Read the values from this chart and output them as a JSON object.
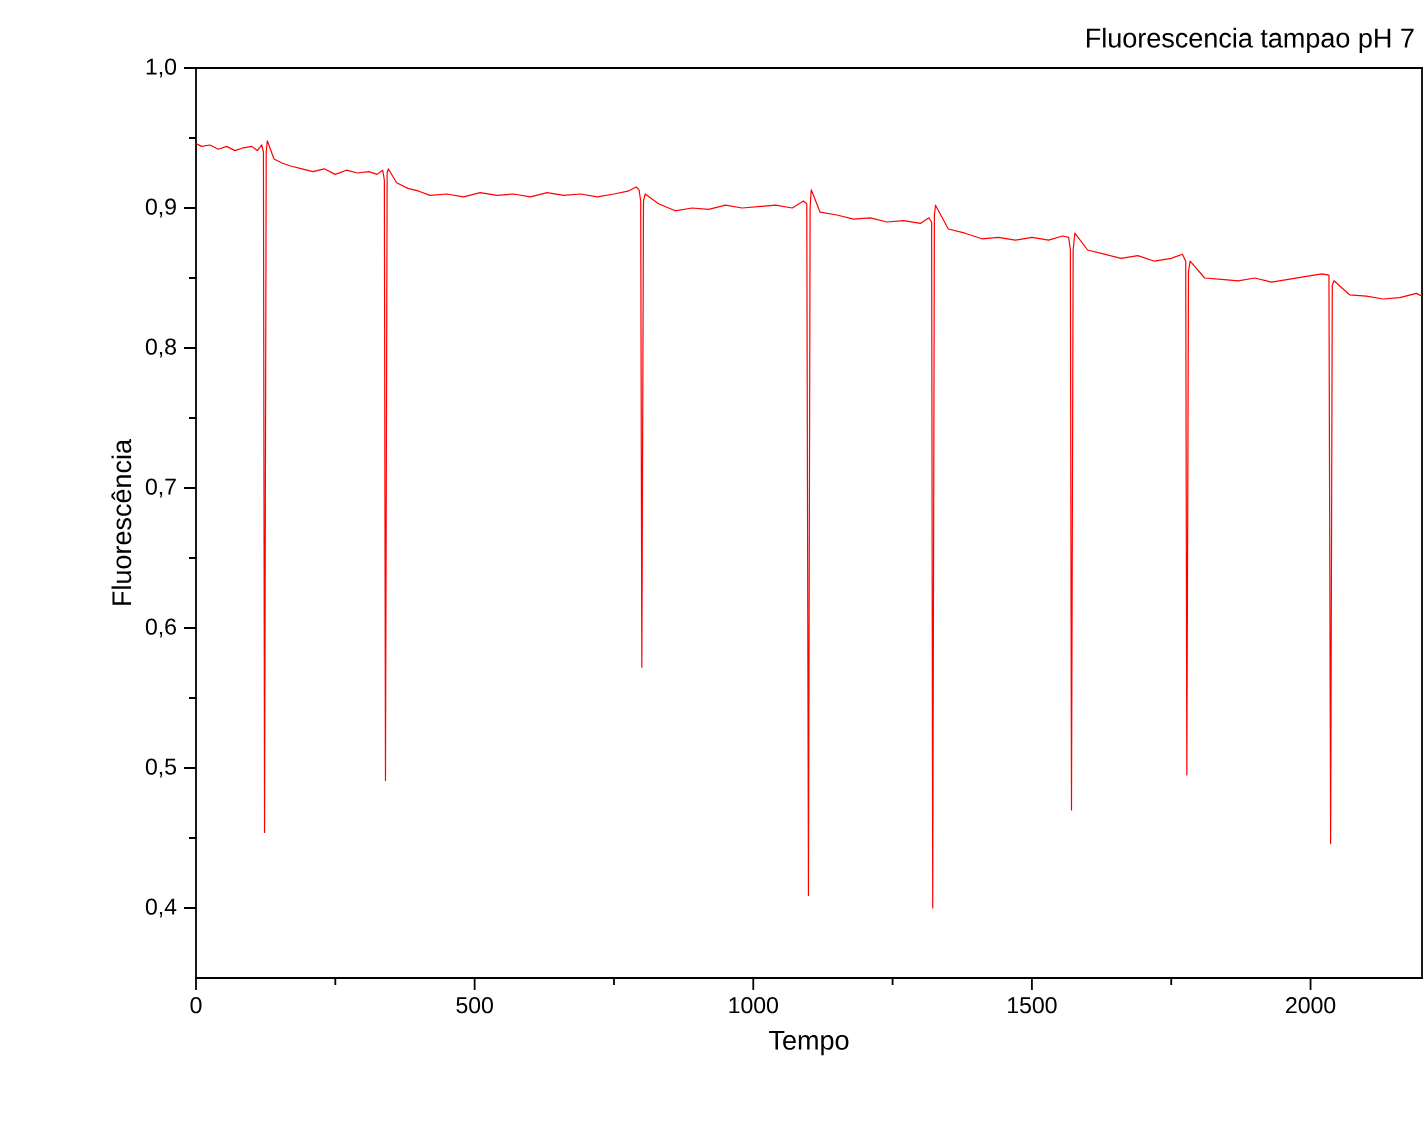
{
  "chart_data": {
    "type": "line",
    "title": "Fluorescencia tampao pH 7",
    "xlabel": "Tempo",
    "ylabel": "Fluorescência",
    "xlim": [
      0,
      2200
    ],
    "ylim": [
      0.35,
      1.0
    ],
    "xticks": [
      0,
      500,
      1000,
      1500,
      2000
    ],
    "yticks": [
      {
        "value": 0.4,
        "label": "0,4"
      },
      {
        "value": 0.5,
        "label": "0,5"
      },
      {
        "value": 0.6,
        "label": "0,6"
      },
      {
        "value": 0.7,
        "label": "0,7"
      },
      {
        "value": 0.8,
        "label": "0,8"
      },
      {
        "value": 0.9,
        "label": "0,9"
      },
      {
        "value": 1.0,
        "label": "1,0"
      }
    ],
    "series": [
      {
        "color": "#ff0000",
        "x": [
          0,
          10,
          25,
          40,
          55,
          70,
          85,
          100,
          110,
          118,
          121,
          123,
          126,
          128,
          140,
          155,
          170,
          190,
          210,
          230,
          250,
          270,
          290,
          310,
          325,
          335,
          338,
          340,
          343,
          345,
          360,
          380,
          400,
          420,
          450,
          480,
          510,
          540,
          570,
          600,
          630,
          660,
          690,
          720,
          750,
          775,
          790,
          795,
          798,
          800,
          803,
          806,
          830,
          860,
          890,
          920,
          950,
          980,
          1010,
          1040,
          1070,
          1090,
          1096,
          1099,
          1102,
          1104,
          1120,
          1150,
          1180,
          1210,
          1240,
          1270,
          1300,
          1315,
          1320,
          1322,
          1325,
          1327,
          1350,
          1380,
          1410,
          1440,
          1470,
          1500,
          1530,
          1555,
          1566,
          1569,
          1571,
          1574,
          1577,
          1600,
          1630,
          1660,
          1690,
          1720,
          1750,
          1770,
          1776,
          1778,
          1781,
          1784,
          1810,
          1840,
          1870,
          1900,
          1930,
          1960,
          1990,
          2020,
          2033,
          2036,
          2039,
          2042,
          2070,
          2100,
          2130,
          2160,
          2190,
          2200
        ],
        "values": [
          0.946,
          0.944,
          0.945,
          0.942,
          0.944,
          0.941,
          0.943,
          0.944,
          0.941,
          0.945,
          0.94,
          0.454,
          0.94,
          0.948,
          0.935,
          0.932,
          0.93,
          0.928,
          0.926,
          0.928,
          0.924,
          0.927,
          0.925,
          0.926,
          0.924,
          0.927,
          0.92,
          0.491,
          0.925,
          0.928,
          0.918,
          0.914,
          0.912,
          0.909,
          0.91,
          0.908,
          0.911,
          0.909,
          0.91,
          0.908,
          0.911,
          0.909,
          0.91,
          0.908,
          0.91,
          0.912,
          0.915,
          0.913,
          0.905,
          0.572,
          0.905,
          0.91,
          0.903,
          0.898,
          0.9,
          0.899,
          0.902,
          0.9,
          0.901,
          0.902,
          0.9,
          0.905,
          0.903,
          0.409,
          0.9,
          0.913,
          0.897,
          0.895,
          0.892,
          0.893,
          0.89,
          0.891,
          0.889,
          0.893,
          0.89,
          0.4,
          0.895,
          0.902,
          0.885,
          0.882,
          0.878,
          0.879,
          0.877,
          0.879,
          0.877,
          0.88,
          0.879,
          0.87,
          0.47,
          0.87,
          0.882,
          0.87,
          0.867,
          0.864,
          0.866,
          0.862,
          0.864,
          0.867,
          0.862,
          0.495,
          0.855,
          0.862,
          0.85,
          0.849,
          0.848,
          0.85,
          0.847,
          0.849,
          0.851,
          0.853,
          0.852,
          0.446,
          0.845,
          0.848,
          0.838,
          0.837,
          0.835,
          0.836,
          0.839,
          0.837
        ]
      }
    ]
  }
}
